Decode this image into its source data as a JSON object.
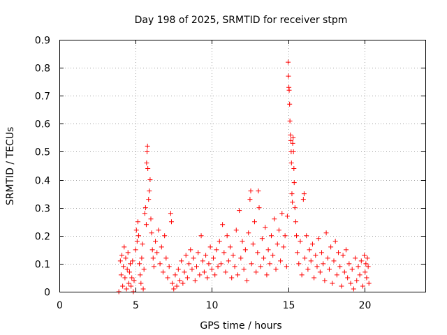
{
  "chart_data": {
    "type": "scatter",
    "title": "Day 198 of 2025, SRMTID for receiver stpm",
    "xlabel": "GPS time / hours",
    "ylabel": "SRMTID / TECUs",
    "xlim": [
      0,
      24
    ],
    "ylim": [
      0,
      0.9
    ],
    "x_ticks": [
      0,
      5,
      10,
      15,
      20
    ],
    "x_tick_labels": [
      "0",
      "5",
      "10",
      "15",
      "20"
    ],
    "y_ticks": [
      0,
      0.1,
      0.2,
      0.3,
      0.4,
      0.5,
      0.6,
      0.7,
      0.8,
      0.9
    ],
    "y_tick_labels": [
      "0",
      "0.1",
      "0.2",
      "0.3",
      "0.4",
      "0.5",
      "0.6",
      "0.7",
      "0.8",
      "0.9"
    ],
    "grid": true,
    "marker": "+",
    "color": "#ff0000",
    "series": [
      {
        "name": "SRMTID",
        "points": [
          [
            3.9,
            0.0
          ],
          [
            4.0,
            0.11
          ],
          [
            4.05,
            0.06
          ],
          [
            4.1,
            0.13
          ],
          [
            4.15,
            0.02
          ],
          [
            4.2,
            0.09
          ],
          [
            4.25,
            0.16
          ],
          [
            4.3,
            0.05
          ],
          [
            4.35,
            0.12
          ],
          [
            4.4,
            0.01
          ],
          [
            4.45,
            0.08
          ],
          [
            4.5,
            0.14
          ],
          [
            4.55,
            0.03
          ],
          [
            4.6,
            0.07
          ],
          [
            4.65,
            0.1
          ],
          [
            4.7,
            0.02
          ],
          [
            4.75,
            0.05
          ],
          [
            4.8,
            0.11
          ],
          [
            4.85,
            0.0
          ],
          [
            4.9,
            0.04
          ],
          [
            5.0,
            0.15
          ],
          [
            5.05,
            0.22
          ],
          [
            5.1,
            0.18
          ],
          [
            5.15,
            0.25
          ],
          [
            5.2,
            0.2
          ],
          [
            5.25,
            0.1
          ],
          [
            5.3,
            0.06
          ],
          [
            5.35,
            0.03
          ],
          [
            5.4,
            0.12
          ],
          [
            5.45,
            0.17
          ],
          [
            5.5,
            0.01
          ],
          [
            5.55,
            0.08
          ],
          [
            5.6,
            0.28
          ],
          [
            5.65,
            0.3
          ],
          [
            5.7,
            0.24
          ],
          [
            5.72,
            0.46
          ],
          [
            5.75,
            0.5
          ],
          [
            5.78,
            0.52
          ],
          [
            5.8,
            0.44
          ],
          [
            5.85,
            0.33
          ],
          [
            5.9,
            0.36
          ],
          [
            5.95,
            0.4
          ],
          [
            6.0,
            0.26
          ],
          [
            6.05,
            0.21
          ],
          [
            6.1,
            0.15
          ],
          [
            6.15,
            0.12
          ],
          [
            6.2,
            0.09
          ],
          [
            6.3,
            0.18
          ],
          [
            6.4,
            0.14
          ],
          [
            6.5,
            0.22
          ],
          [
            6.6,
            0.1
          ],
          [
            6.7,
            0.16
          ],
          [
            6.8,
            0.07
          ],
          [
            6.9,
            0.2
          ],
          [
            7.0,
            0.12
          ],
          [
            7.1,
            0.05
          ],
          [
            7.2,
            0.09
          ],
          [
            7.3,
            0.28
          ],
          [
            7.35,
            0.25
          ],
          [
            7.4,
            0.03
          ],
          [
            7.5,
            0.01
          ],
          [
            7.6,
            0.06
          ],
          [
            7.7,
            0.02
          ],
          [
            7.8,
            0.08
          ],
          [
            7.9,
            0.04
          ],
          [
            8.0,
            0.11
          ],
          [
            8.1,
            0.03
          ],
          [
            8.2,
            0.07
          ],
          [
            8.3,
            0.13
          ],
          [
            8.4,
            0.05
          ],
          [
            8.5,
            0.1
          ],
          [
            8.6,
            0.15
          ],
          [
            8.7,
            0.08
          ],
          [
            8.8,
            0.12
          ],
          [
            8.9,
            0.04
          ],
          [
            9.0,
            0.09
          ],
          [
            9.1,
            0.14
          ],
          [
            9.2,
            0.06
          ],
          [
            9.3,
            0.2
          ],
          [
            9.4,
            0.11
          ],
          [
            9.5,
            0.07
          ],
          [
            9.6,
            0.13
          ],
          [
            9.7,
            0.05
          ],
          [
            9.8,
            0.1
          ],
          [
            9.9,
            0.16
          ],
          [
            10.0,
            0.08
          ],
          [
            10.1,
            0.12
          ],
          [
            10.2,
            0.06
          ],
          [
            10.3,
            0.15
          ],
          [
            10.4,
            0.09
          ],
          [
            10.5,
            0.18
          ],
          [
            10.6,
            0.1
          ],
          [
            10.7,
            0.24
          ],
          [
            10.8,
            0.14
          ],
          [
            10.9,
            0.07
          ],
          [
            11.0,
            0.2
          ],
          [
            11.1,
            0.11
          ],
          [
            11.2,
            0.16
          ],
          [
            11.3,
            0.05
          ],
          [
            11.4,
            0.13
          ],
          [
            11.5,
            0.09
          ],
          [
            11.6,
            0.22
          ],
          [
            11.7,
            0.06
          ],
          [
            11.8,
            0.29
          ],
          [
            11.9,
            0.12
          ],
          [
            12.0,
            0.18
          ],
          [
            12.1,
            0.08
          ],
          [
            12.2,
            0.15
          ],
          [
            12.3,
            0.04
          ],
          [
            12.4,
            0.21
          ],
          [
            12.5,
            0.33
          ],
          [
            12.55,
            0.36
          ],
          [
            12.6,
            0.1
          ],
          [
            12.7,
            0.17
          ],
          [
            12.8,
            0.25
          ],
          [
            12.9,
            0.07
          ],
          [
            13.0,
            0.14
          ],
          [
            13.05,
            0.36
          ],
          [
            13.1,
            0.3
          ],
          [
            13.2,
            0.09
          ],
          [
            13.3,
            0.19
          ],
          [
            13.4,
            0.12
          ],
          [
            13.5,
            0.23
          ],
          [
            13.6,
            0.06
          ],
          [
            13.7,
            0.15
          ],
          [
            13.8,
            0.1
          ],
          [
            13.9,
            0.2
          ],
          [
            14.0,
            0.13
          ],
          [
            14.1,
            0.26
          ],
          [
            14.2,
            0.08
          ],
          [
            14.3,
            0.17
          ],
          [
            14.4,
            0.22
          ],
          [
            14.5,
            0.11
          ],
          [
            14.6,
            0.28
          ],
          [
            14.7,
            0.16
          ],
          [
            14.8,
            0.2
          ],
          [
            14.9,
            0.09
          ],
          [
            14.95,
            0.27
          ],
          [
            15.0,
            0.82
          ],
          [
            15.02,
            0.77
          ],
          [
            15.05,
            0.73
          ],
          [
            15.07,
            0.72
          ],
          [
            15.1,
            0.67
          ],
          [
            15.12,
            0.61
          ],
          [
            15.15,
            0.56
          ],
          [
            15.18,
            0.54
          ],
          [
            15.2,
            0.5
          ],
          [
            15.22,
            0.46
          ],
          [
            15.25,
            0.35
          ],
          [
            15.28,
            0.32
          ],
          [
            15.3,
            0.53
          ],
          [
            15.33,
            0.55
          ],
          [
            15.35,
            0.5
          ],
          [
            15.38,
            0.44
          ],
          [
            15.4,
            0.39
          ],
          [
            15.45,
            0.3
          ],
          [
            15.5,
            0.25
          ],
          [
            15.55,
            0.2
          ],
          [
            15.6,
            0.14
          ],
          [
            15.7,
            0.1
          ],
          [
            15.8,
            0.18
          ],
          [
            15.9,
            0.06
          ],
          [
            16.0,
            0.33
          ],
          [
            16.05,
            0.35
          ],
          [
            16.1,
            0.12
          ],
          [
            16.2,
            0.2
          ],
          [
            16.3,
            0.08
          ],
          [
            16.4,
            0.15
          ],
          [
            16.5,
            0.11
          ],
          [
            16.6,
            0.17
          ],
          [
            16.7,
            0.05
          ],
          [
            16.8,
            0.13
          ],
          [
            16.9,
            0.09
          ],
          [
            17.0,
            0.19
          ],
          [
            17.1,
            0.07
          ],
          [
            17.2,
            0.14
          ],
          [
            17.3,
            0.1
          ],
          [
            17.4,
            0.04
          ],
          [
            17.5,
            0.21
          ],
          [
            17.6,
            0.12
          ],
          [
            17.7,
            0.08
          ],
          [
            17.8,
            0.16
          ],
          [
            17.9,
            0.03
          ],
          [
            18.0,
            0.11
          ],
          [
            18.1,
            0.18
          ],
          [
            18.2,
            0.06
          ],
          [
            18.3,
            0.14
          ],
          [
            18.4,
            0.09
          ],
          [
            18.5,
            0.02
          ],
          [
            18.6,
            0.13
          ],
          [
            18.7,
            0.07
          ],
          [
            18.8,
            0.15
          ],
          [
            18.9,
            0.05
          ],
          [
            19.0,
            0.1
          ],
          [
            19.1,
            0.03
          ],
          [
            19.2,
            0.08
          ],
          [
            19.3,
            0.01
          ],
          [
            19.4,
            0.12
          ],
          [
            19.5,
            0.04
          ],
          [
            19.6,
            0.09
          ],
          [
            19.7,
            0.06
          ],
          [
            19.8,
            0.11
          ],
          [
            19.9,
            0.02
          ],
          [
            20.0,
            0.13
          ],
          [
            20.05,
            0.07
          ],
          [
            20.1,
            0.1
          ],
          [
            20.15,
            0.05
          ],
          [
            20.2,
            0.12
          ],
          [
            20.25,
            0.09
          ],
          [
            20.3,
            0.03
          ]
        ]
      }
    ]
  }
}
